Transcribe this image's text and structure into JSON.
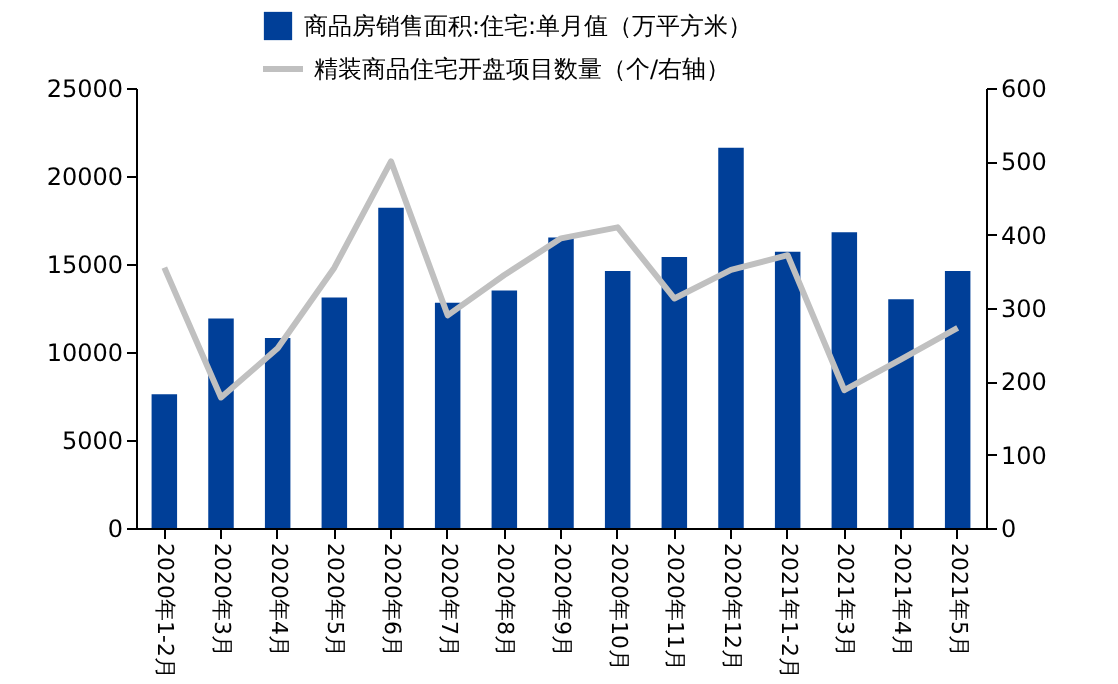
{
  "chart_data": {
    "type": "bar",
    "categories": [
      "2020年1-2月",
      "2020年3月",
      "2020年4月",
      "2020年5月",
      "2020年6月",
      "2020年7月",
      "2020年8月",
      "2020年9月",
      "2020年10月",
      "2020年11月",
      "2020年12月",
      "2021年1-2月",
      "2021年3月",
      "2021年4月",
      "2021年5月"
    ],
    "series": [
      {
        "name": "商品房销售面积:住宅:单月值（万平方米）",
        "color": "#003f98",
        "values": [
          7600,
          11900,
          10800,
          13100,
          18200,
          12800,
          13500,
          16500,
          14600,
          15400,
          21600,
          15700,
          16800,
          13000,
          14600
        ]
      },
      {
        "name": "精装商品住宅开盘项目数量（个/右轴）",
        "type": "line",
        "axis": "y2",
        "color": "#c0c0c0",
        "values": [
          355,
          178,
          245,
          355,
          500,
          290,
          345,
          395,
          410,
          313,
          352,
          372,
          188,
          230,
          273
        ]
      }
    ],
    "ylim": [
      0,
      25000
    ],
    "yticks": [
      0,
      5000,
      10000,
      15000,
      20000,
      25000
    ],
    "y2lim": [
      0,
      600
    ],
    "y2ticks": [
      0,
      100,
      200,
      300,
      400,
      500,
      600
    ],
    "grid": false,
    "legend": "top",
    "marker": "none",
    "line_style": "solid"
  }
}
